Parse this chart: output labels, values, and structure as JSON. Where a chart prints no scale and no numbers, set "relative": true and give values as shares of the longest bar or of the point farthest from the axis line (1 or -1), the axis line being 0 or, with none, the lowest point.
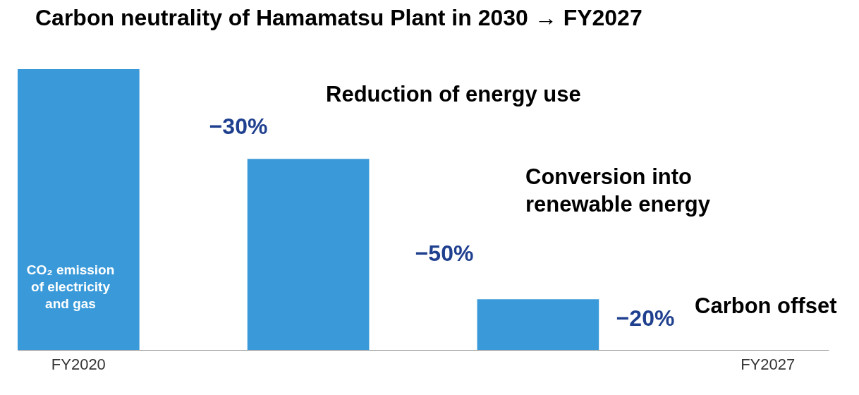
{
  "chart_data": {
    "type": "bar",
    "title": "Carbon neutrality of Hamamatsu Plant in 2030 → FY2027",
    "categories": [
      "FY2020",
      null,
      null,
      "FY2027"
    ],
    "values": [
      1,
      0.68,
      0.18,
      0
    ],
    "color": "#3a9ad9",
    "relative": true,
    "grid": false,
    "annotations": [
      "CO₂ emission\nof electricity\nand gas",
      "−30%",
      "Reduction of energy use",
      "−50%",
      "Conversion into\nrenewable energy",
      "−20%",
      "Carbon offset"
    ]
  }
}
